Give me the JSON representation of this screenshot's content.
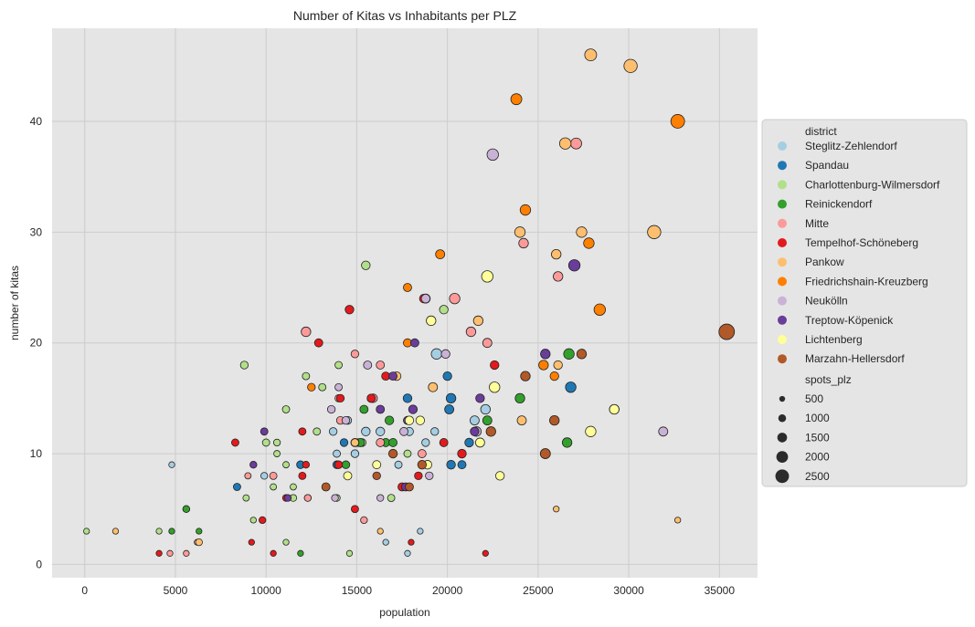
{
  "chart_data": {
    "type": "scatter",
    "title": "Number of Kitas vs Inhabitants per PLZ",
    "xlabel": "population",
    "ylabel": "number of kitas",
    "xlim": [
      -1800,
      37100
    ],
    "ylim": [
      -1.2,
      48.4
    ],
    "x_ticks": [
      0,
      5000,
      10000,
      15000,
      20000,
      25000,
      30000,
      35000
    ],
    "y_ticks": [
      0,
      10,
      20,
      30,
      40
    ],
    "grid": true,
    "legend_placement": "center-right outside",
    "legend": {
      "hue_title": "district",
      "size_title": "spots_plz",
      "size_levels": [
        500,
        1000,
        1500,
        2000,
        2500
      ]
    },
    "series": [
      {
        "name": "Steglitz-Zehlendorf",
        "color": "#a6cee3",
        "points": [
          [
            4800,
            9,
            300
          ],
          [
            9900,
            8,
            500
          ],
          [
            13700,
            12,
            700
          ],
          [
            14500,
            13,
            700
          ],
          [
            15500,
            12,
            900
          ],
          [
            16300,
            12,
            900
          ],
          [
            17300,
            9,
            600
          ],
          [
            18500,
            3,
            300
          ],
          [
            17800,
            1,
            300
          ],
          [
            19400,
            19,
            1300
          ],
          [
            22100,
            14,
            1100
          ],
          [
            21500,
            13,
            1000
          ],
          [
            19300,
            12,
            700
          ],
          [
            18800,
            11,
            700
          ],
          [
            16600,
            2,
            300
          ],
          [
            13900,
            10,
            600
          ],
          [
            14900,
            10,
            700
          ],
          [
            15100,
            11,
            700
          ],
          [
            17900,
            12,
            800
          ]
        ]
      },
      {
        "name": "Spandau",
        "color": "#1f78b4",
        "points": [
          [
            8400,
            7,
            600
          ],
          [
            11900,
            9,
            700
          ],
          [
            14300,
            11,
            700
          ],
          [
            17800,
            15,
            900
          ],
          [
            20000,
            17,
            900
          ],
          [
            20200,
            15,
            1100
          ],
          [
            20100,
            14,
            1000
          ],
          [
            20200,
            9,
            900
          ],
          [
            20800,
            9,
            800
          ],
          [
            21200,
            11,
            900
          ],
          [
            26800,
            16,
            1300
          ],
          [
            13900,
            9,
            700
          ]
        ]
      },
      {
        "name": "Charlottenburg-Wilmersdorf",
        "color": "#b2df8a",
        "points": [
          [
            100,
            3,
            300
          ],
          [
            4100,
            3,
            300
          ],
          [
            5600,
            5,
            500
          ],
          [
            8800,
            18,
            700
          ],
          [
            8900,
            6,
            400
          ],
          [
            9300,
            4,
            300
          ],
          [
            10000,
            11,
            600
          ],
          [
            10600,
            10,
            400
          ],
          [
            10600,
            11,
            500
          ],
          [
            11100,
            14,
            600
          ],
          [
            11100,
            9,
            400
          ],
          [
            11500,
            6,
            500
          ],
          [
            11500,
            7,
            400
          ],
          [
            12200,
            17,
            600
          ],
          [
            12300,
            6,
            500
          ],
          [
            13100,
            16,
            600
          ],
          [
            12800,
            12,
            600
          ],
          [
            14000,
            18,
            600
          ],
          [
            15500,
            27,
            900
          ],
          [
            15300,
            11,
            700
          ],
          [
            13900,
            6,
            500
          ],
          [
            14600,
            1,
            300
          ],
          [
            16900,
            6,
            600
          ],
          [
            17800,
            10,
            600
          ],
          [
            19800,
            23,
            900
          ],
          [
            11100,
            2,
            300
          ],
          [
            10400,
            7,
            400
          ]
        ]
      },
      {
        "name": "Reinickendorf",
        "color": "#33a02c",
        "points": [
          [
            4800,
            3,
            300
          ],
          [
            6300,
            3,
            300
          ],
          [
            5600,
            5,
            500
          ],
          [
            11900,
            1,
            300
          ],
          [
            14400,
            9,
            700
          ],
          [
            15200,
            11,
            800
          ],
          [
            15400,
            14,
            800
          ],
          [
            15800,
            15,
            800
          ],
          [
            16600,
            11,
            800
          ],
          [
            16800,
            13,
            900
          ],
          [
            17000,
            11,
            800
          ],
          [
            22200,
            13,
            1000
          ],
          [
            24000,
            15,
            1100
          ],
          [
            26700,
            19,
            1300
          ],
          [
            26600,
            11,
            1100
          ]
        ]
      },
      {
        "name": "Mitte",
        "color": "#fb9a99",
        "points": [
          [
            4700,
            1,
            300
          ],
          [
            5600,
            1,
            300
          ],
          [
            6200,
            2,
            300
          ],
          [
            9000,
            8,
            400
          ],
          [
            10400,
            8,
            600
          ],
          [
            12200,
            21,
            1100
          ],
          [
            12300,
            6,
            500
          ],
          [
            14100,
            13,
            700
          ],
          [
            14900,
            19,
            700
          ],
          [
            15400,
            4,
            500
          ],
          [
            15900,
            15,
            900
          ],
          [
            16300,
            18,
            800
          ],
          [
            16300,
            11,
            800
          ],
          [
            18600,
            10,
            800
          ],
          [
            18800,
            24,
            1000
          ],
          [
            20400,
            24,
            1300
          ],
          [
            21300,
            21,
            1100
          ],
          [
            22200,
            20,
            1000
          ],
          [
            24200,
            29,
            1100
          ],
          [
            26100,
            26,
            1100
          ],
          [
            27100,
            38,
            1400
          ],
          [
            14000,
            15,
            600
          ]
        ]
      },
      {
        "name": "Tempelhof-Schöneberg",
        "color": "#e31a1c",
        "points": [
          [
            4100,
            1,
            300
          ],
          [
            8300,
            11,
            600
          ],
          [
            9200,
            2,
            300
          ],
          [
            9800,
            4,
            500
          ],
          [
            10400,
            1,
            300
          ],
          [
            11100,
            6,
            500
          ],
          [
            12000,
            12,
            600
          ],
          [
            12000,
            8,
            600
          ],
          [
            12200,
            9,
            500
          ],
          [
            12900,
            20,
            800
          ],
          [
            14100,
            15,
            700
          ],
          [
            14000,
            9,
            700
          ],
          [
            14600,
            23,
            900
          ],
          [
            14900,
            11,
            800
          ],
          [
            14900,
            5,
            600
          ],
          [
            15800,
            15,
            800
          ],
          [
            16600,
            17,
            800
          ],
          [
            17500,
            7,
            800
          ],
          [
            18000,
            2,
            300
          ],
          [
            18400,
            8,
            700
          ],
          [
            18700,
            24,
            900
          ],
          [
            19800,
            11,
            800
          ],
          [
            20800,
            10,
            900
          ],
          [
            22100,
            1,
            300
          ],
          [
            22600,
            18,
            900
          ]
        ]
      },
      {
        "name": "Pankow",
        "color": "#fdbf6f",
        "points": [
          [
            1700,
            3,
            300
          ],
          [
            6300,
            2,
            500
          ],
          [
            14900,
            11,
            700
          ],
          [
            17200,
            17,
            900
          ],
          [
            16300,
            3,
            300
          ],
          [
            19200,
            16,
            1000
          ],
          [
            21700,
            22,
            1100
          ],
          [
            24000,
            30,
            1300
          ],
          [
            24100,
            13,
            1000
          ],
          [
            26000,
            28,
            1100
          ],
          [
            26100,
            18,
            900
          ],
          [
            26500,
            38,
            1500
          ],
          [
            27400,
            30,
            1300
          ],
          [
            27900,
            46,
            1600
          ],
          [
            30100,
            45,
            1900
          ],
          [
            31400,
            30,
            1900
          ],
          [
            26000,
            5,
            300
          ],
          [
            32700,
            4,
            300
          ]
        ]
      },
      {
        "name": "Friedrichshain-Kreuzberg",
        "color": "#ff7f00",
        "points": [
          [
            12500,
            16,
            700
          ],
          [
            17800,
            25,
            800
          ],
          [
            17800,
            20,
            800
          ],
          [
            19600,
            28,
            1000
          ],
          [
            23800,
            42,
            1400
          ],
          [
            24300,
            32,
            1300
          ],
          [
            25300,
            18,
            1100
          ],
          [
            25900,
            17,
            900
          ],
          [
            27800,
            29,
            1300
          ],
          [
            28400,
            23,
            1500
          ],
          [
            32700,
            40,
            2000
          ]
        ]
      },
      {
        "name": "Neukölln",
        "color": "#cab2d6",
        "points": [
          [
            13600,
            14,
            700
          ],
          [
            13800,
            6,
            500
          ],
          [
            14000,
            16,
            600
          ],
          [
            14400,
            13,
            700
          ],
          [
            15600,
            18,
            800
          ],
          [
            16300,
            6,
            500
          ],
          [
            17600,
            12,
            800
          ],
          [
            18800,
            24,
            900
          ],
          [
            19000,
            8,
            700
          ],
          [
            19900,
            19,
            900
          ],
          [
            21600,
            12,
            1100
          ],
          [
            22500,
            37,
            1500
          ],
          [
            31900,
            12,
            1000
          ],
          [
            29200,
            14,
            1100
          ]
        ]
      },
      {
        "name": "Treptow-Köpenick",
        "color": "#6a3d9a",
        "points": [
          [
            9300,
            9,
            500
          ],
          [
            9900,
            12,
            600
          ],
          [
            11200,
            6,
            500
          ],
          [
            16300,
            14,
            800
          ],
          [
            17000,
            17,
            800
          ],
          [
            17800,
            13,
            800
          ],
          [
            18200,
            20,
            800
          ],
          [
            18100,
            14,
            900
          ],
          [
            21800,
            15,
            900
          ],
          [
            21500,
            12,
            900
          ],
          [
            25400,
            19,
            1100
          ],
          [
            27000,
            27,
            1500
          ],
          [
            17700,
            7,
            800
          ]
        ]
      },
      {
        "name": "Lichtenberg",
        "color": "#ffff99",
        "points": [
          [
            14500,
            8,
            800
          ],
          [
            16100,
            9,
            800
          ],
          [
            17900,
            13,
            900
          ],
          [
            18500,
            13,
            900
          ],
          [
            18900,
            9,
            900
          ],
          [
            19100,
            22,
            1100
          ],
          [
            21800,
            11,
            1000
          ],
          [
            22200,
            26,
            1500
          ],
          [
            22600,
            16,
            1300
          ],
          [
            22900,
            8,
            900
          ],
          [
            27900,
            12,
            1300
          ],
          [
            29200,
            14,
            1100
          ]
        ]
      },
      {
        "name": "Marzahn-Hellersdorf",
        "color": "#b15928",
        "points": [
          [
            13300,
            7,
            800
          ],
          [
            16100,
            8,
            700
          ],
          [
            17000,
            10,
            900
          ],
          [
            17900,
            7,
            800
          ],
          [
            18600,
            9,
            900
          ],
          [
            22400,
            12,
            1100
          ],
          [
            24300,
            17,
            1100
          ],
          [
            25400,
            10,
            1200
          ],
          [
            25900,
            13,
            1100
          ],
          [
            27400,
            19,
            1100
          ],
          [
            35400,
            21,
            2400
          ]
        ]
      }
    ]
  }
}
